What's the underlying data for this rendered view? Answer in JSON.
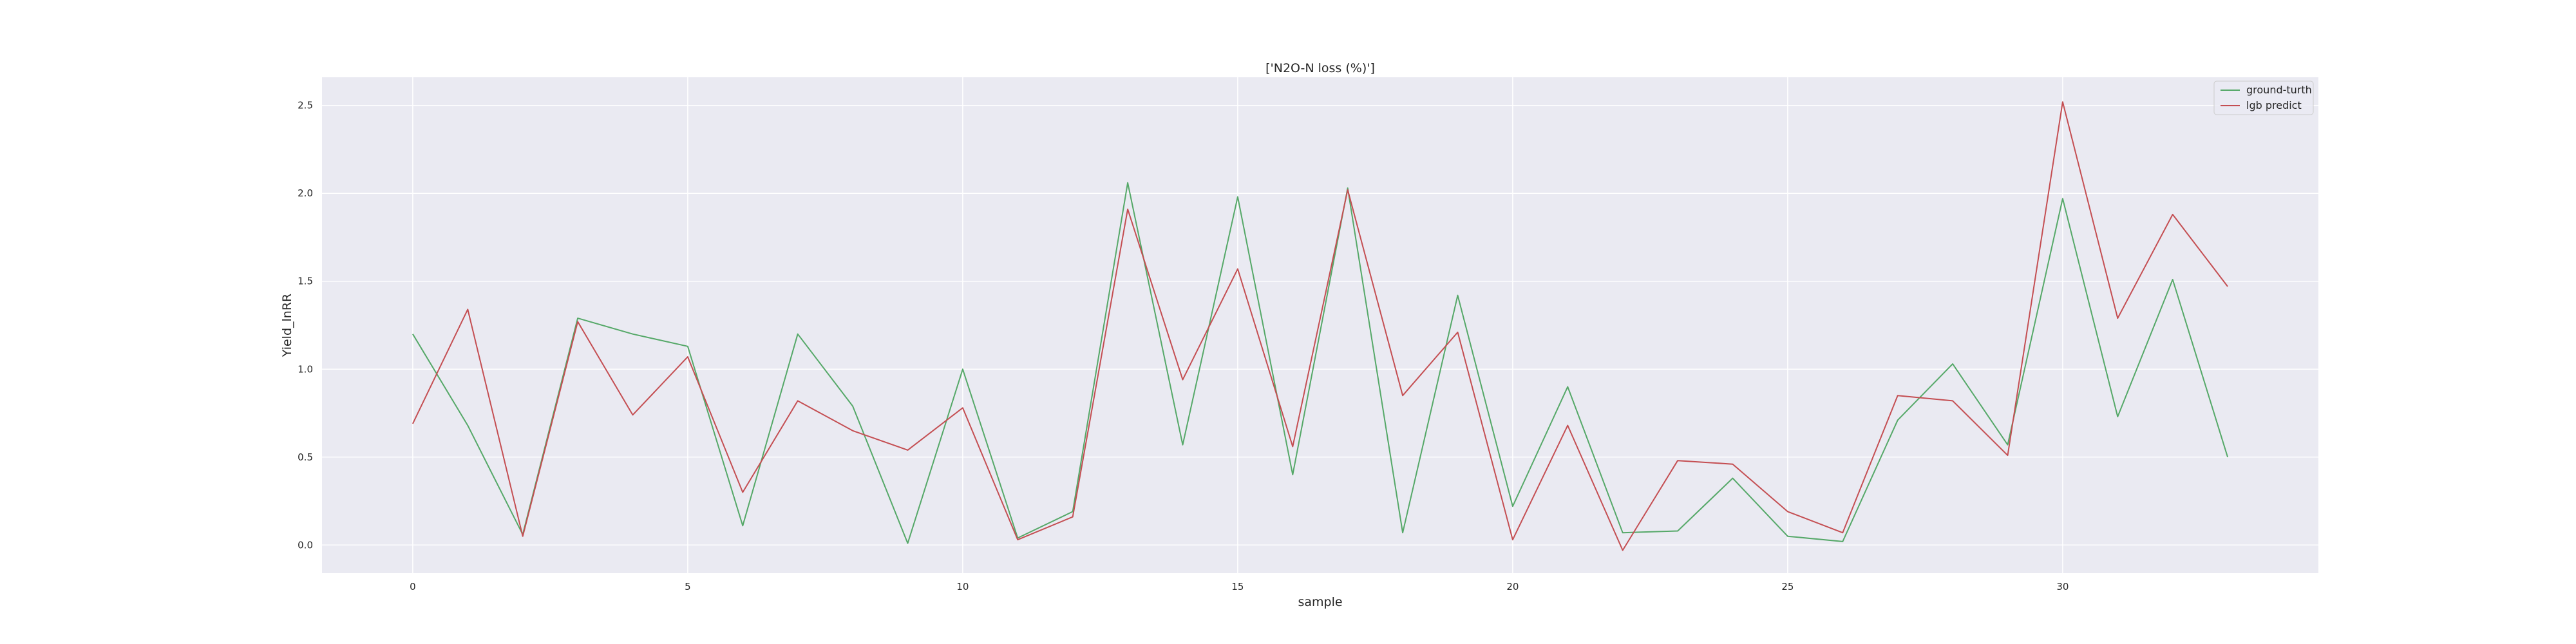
{
  "chart_data": {
    "type": "line",
    "title": "['N2O-N loss (%)']",
    "xlabel": "sample",
    "ylabel": "Yield_lnRR",
    "x": [
      0,
      1,
      2,
      3,
      4,
      5,
      6,
      7,
      8,
      9,
      10,
      11,
      12,
      13,
      14,
      15,
      16,
      17,
      18,
      19,
      20,
      21,
      22,
      23,
      24,
      25,
      26,
      27,
      28,
      29,
      30,
      31,
      32,
      33
    ],
    "xlim": [
      -1.65,
      34.65
    ],
    "ylim": [
      -0.16,
      2.66
    ],
    "xticks": [
      0,
      5,
      10,
      15,
      20,
      25,
      30
    ],
    "yticks": [
      0.0,
      0.5,
      1.0,
      1.5,
      2.0,
      2.5
    ],
    "xtick_labels": [
      "0",
      "5",
      "10",
      "15",
      "20",
      "25",
      "30"
    ],
    "ytick_labels": [
      "0.0",
      "0.5",
      "1.0",
      "1.5",
      "2.0",
      "2.5"
    ],
    "grid": true,
    "legend_position": "top-right",
    "series": [
      {
        "name": "ground-turth",
        "color": "#55a868",
        "values": [
          1.2,
          0.68,
          0.06,
          1.29,
          1.2,
          1.13,
          0.11,
          1.2,
          0.79,
          0.01,
          1.0,
          0.04,
          0.19,
          2.06,
          0.57,
          1.98,
          0.4,
          2.03,
          0.07,
          1.42,
          0.22,
          0.9,
          0.07,
          0.08,
          0.38,
          0.05,
          0.02,
          0.71,
          1.03,
          0.57,
          1.97,
          0.73,
          1.51,
          0.5
        ]
      },
      {
        "name": "lgb predict",
        "color": "#c44e52",
        "values": [
          0.69,
          1.34,
          0.05,
          1.27,
          0.74,
          1.07,
          0.3,
          0.82,
          0.65,
          0.54,
          0.78,
          0.03,
          0.16,
          1.91,
          0.94,
          1.57,
          0.56,
          2.02,
          0.85,
          1.21,
          0.03,
          0.68,
          -0.03,
          0.48,
          0.46,
          0.19,
          0.07,
          0.85,
          0.82,
          0.51,
          2.52,
          1.29,
          1.88,
          1.47
        ]
      }
    ]
  }
}
